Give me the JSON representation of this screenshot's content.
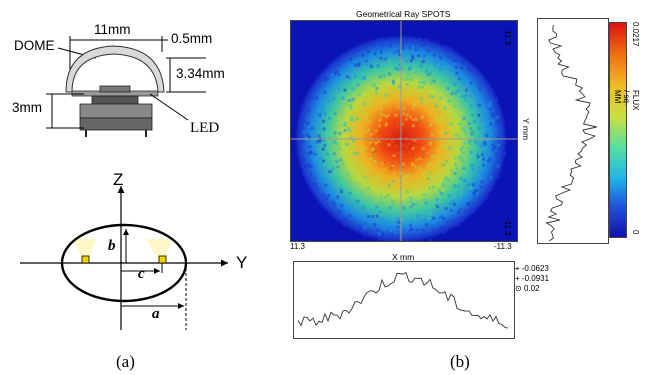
{
  "panel_a": {
    "led_figure": {
      "dome_label": "DOME",
      "width_label": "11mm",
      "thickness_label": "0.5mm",
      "dome_height_label": "3.34mm",
      "led_height_label": "3mm",
      "led_label": "LED"
    },
    "ellipse_figure": {
      "z_axis_label": "Z",
      "y_axis_label": "Y",
      "b_label": "b",
      "c_label": "c",
      "a_label": "a"
    },
    "caption": "(a)"
  },
  "panel_b": {
    "title": "Geometrical Ray SPOTS",
    "x_axis_label": "X mm",
    "y_axis_label": "Y mm",
    "x_left_tick": "11.3",
    "x_right_tick": "-11.3",
    "y_top_tick": "11.3",
    "y_bottom_tick": "-11.3",
    "colorbar_label": "FLUX / sq-MM",
    "colorbar_max": "0.0217",
    "colorbar_min": "0",
    "stats": [
      "-0.0623",
      "-0.0931",
      "0.02"
    ],
    "caption": "(b)"
  },
  "colors": {
    "map_background": "#0a14b4",
    "hot_center": "#e01010",
    "crosshair": "#9a9a9a",
    "led_yellow": "#f2d400"
  }
}
